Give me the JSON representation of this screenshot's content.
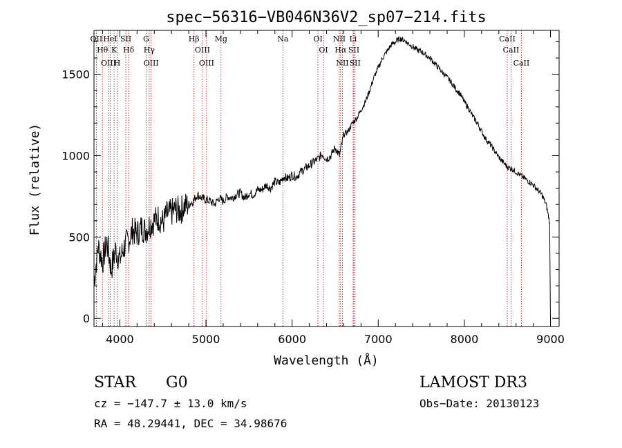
{
  "chart_data": {
    "type": "line",
    "title": "spec−56316−VB046N36V2_sp07−214.fits",
    "xlabel": "Wavelength (Å)",
    "ylabel": "Flux (relative)",
    "xlim": [
      3700,
      9100
    ],
    "ylim": [
      -50,
      1770
    ],
    "xticks": [
      4000,
      5000,
      6000,
      7000,
      8000,
      9000
    ],
    "yticks": [
      0,
      500,
      1000,
      1500
    ],
    "series": [
      {
        "name": "spectrum",
        "x": [
          3700,
          3750,
          3800,
          3850,
          3900,
          3950,
          4000,
          4050,
          4100,
          4150,
          4200,
          4250,
          4300,
          4350,
          4400,
          4450,
          4500,
          4550,
          4600,
          4650,
          4700,
          4750,
          4800,
          4850,
          4900,
          4950,
          5000,
          5050,
          5100,
          5150,
          5200,
          5250,
          5300,
          5350,
          5400,
          5450,
          5500,
          5550,
          5600,
          5650,
          5700,
          5750,
          5800,
          5850,
          5900,
          5950,
          6000,
          6050,
          6100,
          6150,
          6200,
          6250,
          6300,
          6350,
          6400,
          6450,
          6500,
          6550,
          6600,
          6650,
          6700,
          6750,
          6800,
          6850,
          6900,
          6950,
          7000,
          7050,
          7100,
          7150,
          7200,
          7250,
          7300,
          7350,
          7400,
          7450,
          7500,
          7550,
          7600,
          7650,
          7700,
          7750,
          7800,
          7850,
          7900,
          7950,
          8000,
          8050,
          8100,
          8150,
          8200,
          8250,
          8300,
          8350,
          8400,
          8450,
          8500,
          8550,
          8600,
          8650,
          8700,
          8750,
          8800,
          8850,
          8900,
          8950,
          8990
        ],
        "y": [
          230,
          440,
          350,
          470,
          300,
          420,
          360,
          440,
          480,
          540,
          520,
          560,
          540,
          580,
          600,
          620,
          590,
          640,
          650,
          670,
          660,
          690,
          700,
          720,
          760,
          740,
          730,
          720,
          700,
          740,
          720,
          750,
          740,
          760,
          770,
          740,
          770,
          760,
          790,
          790,
          820,
          800,
          840,
          830,
          870,
          860,
          880,
          870,
          900,
          920,
          940,
          960,
          980,
          1010,
          980,
          1000,
          1050,
          1000,
          1130,
          1150,
          1200,
          1230,
          1280,
          1330,
          1400,
          1480,
          1540,
          1600,
          1640,
          1680,
          1700,
          1720,
          1710,
          1690,
          1670,
          1650,
          1640,
          1620,
          1600,
          1570,
          1540,
          1510,
          1480,
          1450,
          1410,
          1380,
          1330,
          1290,
          1240,
          1200,
          1150,
          1100,
          1070,
          1030,
          990,
          960,
          930,
          920,
          900,
          880,
          860,
          840,
          820,
          790,
          760,
          700,
          590
        ]
      }
    ],
    "lines": [
      {
        "name": "Hθ",
        "wave": 3798
      },
      {
        "name": "OII",
        "wave": 3727
      },
      {
        "name": "OIII",
        "wave": 3869
      },
      {
        "name": "K",
        "wave": 3934
      },
      {
        "name": "H",
        "wave": 3969
      },
      {
        "name": "HeI",
        "wave": 3889
      },
      {
        "name": "SII",
        "wave": 4070
      },
      {
        "name": "Hδ",
        "wave": 4102
      },
      {
        "name": "Hγ",
        "wave": 4341
      },
      {
        "name": "G",
        "wave": 4305
      },
      {
        "name": "OIII",
        "wave": 4363
      },
      {
        "name": "Hβ",
        "wave": 4861
      },
      {
        "name": "OIII",
        "wave": 4959
      },
      {
        "name": "OIII",
        "wave": 5007
      },
      {
        "name": "Mg",
        "wave": 5175
      },
      {
        "name": "Na",
        "wave": 5893
      },
      {
        "name": "OI",
        "wave": 6300
      },
      {
        "name": "OI",
        "wave": 6364
      },
      {
        "name": "Hα",
        "wave": 6563
      },
      {
        "name": "NII",
        "wave": 6548
      },
      {
        "name": "NII",
        "wave": 6584
      },
      {
        "name": "SII",
        "wave": 6717
      },
      {
        "name": "SII",
        "wave": 6731
      },
      {
        "name": "Li",
        "wave": 6708
      },
      {
        "name": "CaII",
        "wave": 8498
      },
      {
        "name": "CaII",
        "wave": 8542
      },
      {
        "name": "CaII",
        "wave": 8662
      }
    ]
  },
  "info": {
    "class": "STAR",
    "subclass": "G0",
    "survey": "LAMOST DR3",
    "cz": "cz = −147.7 ± 13.0 km/s",
    "obs_date": "Obs−Date: 20130123",
    "radec": "RA =  48.29441, DEC =  34.98676"
  }
}
